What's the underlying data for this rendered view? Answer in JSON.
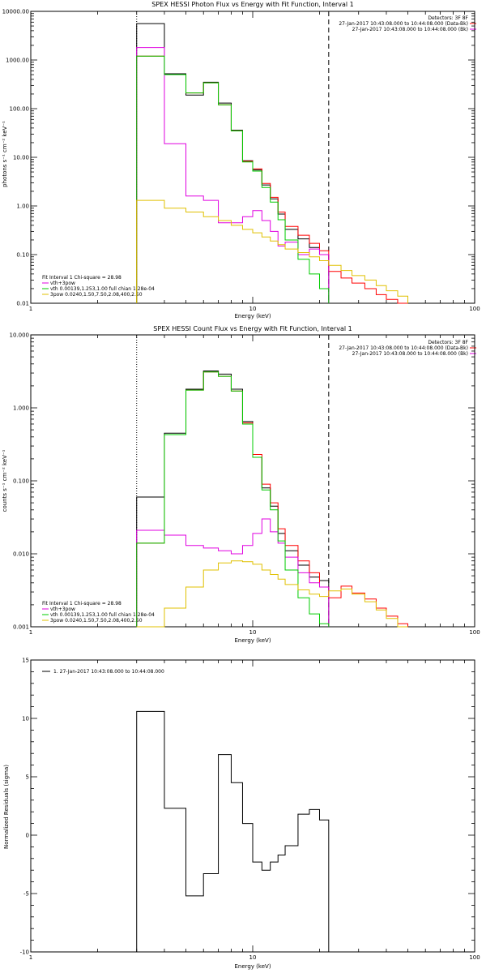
{
  "chart_data": [
    {
      "type": "line",
      "title": "SPEX HESSI Photon Flux vs Energy with Fit Function, Interval 1",
      "xlabel": "Energy (keV)",
      "ylabel": "photons s⁻¹ cm⁻² keV⁻¹",
      "xscale": "log",
      "yscale": "log",
      "xlim": [
        1,
        100
      ],
      "ylim": [
        0.01,
        10000
      ],
      "x_ticks": [
        "1",
        "10",
        "100"
      ],
      "y_ticks": [
        "0.01",
        "0.10",
        "1.00",
        "10.00",
        "100.00",
        "1000.00",
        "10000.00"
      ],
      "vlines": [
        {
          "x": 3,
          "style": "dotted"
        },
        {
          "x": 22,
          "style": "dashed"
        }
      ],
      "legend_top": [
        "Detectors: 3F 8F",
        "27-Jan-2017 10:43:08.000 to 10:44:08.000 (Data-Bk)",
        "27-Jan-2017 10:43:08.000 to 10:44:08.000 (Bk)"
      ],
      "legend_bottom": [
        "Fit Interval  1    Chi-square = 28.98",
        "vth+3pow",
        "vth 0.00139,1.253,1.00  full chian 1.28e-04",
        "3pow 0.0240,1.50,7.50,2.08,400,2.50"
      ],
      "bin_edges": [
        3,
        4,
        5,
        6,
        7,
        8,
        9,
        10,
        11,
        12,
        13,
        14,
        16,
        18,
        20,
        22,
        25,
        28,
        32,
        36,
        40,
        45,
        50
      ],
      "series": [
        {
          "color": "#000000",
          "values": [
            5600,
            520,
            190,
            350,
            130,
            36,
            8.5,
            5.5,
            2.7,
            1.4,
            0.68,
            0.33,
            0.21,
            0.14,
            0.1
          ]
        },
        {
          "color": "#ff0000",
          "values": [
            1200,
            500,
            210,
            340,
            120,
            35,
            8.3,
            5.8,
            2.9,
            1.5,
            0.75,
            0.38,
            0.25,
            0.17,
            0.12,
            0.045,
            0.033,
            0.026,
            0.02,
            0.015,
            0.012,
            0.0095
          ]
        },
        {
          "color": "#e000e0",
          "values": [
            1800,
            19,
            1.6,
            1.3,
            0.45,
            0.45,
            0.6,
            0.8,
            0.5,
            0.3,
            0.15,
            0.18,
            0.1,
            0.13,
            0.1
          ]
        },
        {
          "color": "#00cc00",
          "values": [
            1200,
            500,
            210,
            340,
            120,
            35,
            8.0,
            5.2,
            2.4,
            1.2,
            0.52,
            0.2,
            0.08,
            0.04,
            0.02
          ]
        },
        {
          "color": "#e0c000",
          "values": [
            1.3,
            0.9,
            0.75,
            0.6,
            0.5,
            0.4,
            0.33,
            0.28,
            0.23,
            0.19,
            0.16,
            0.13,
            0.11,
            0.09,
            0.075,
            0.06,
            0.047,
            0.037,
            0.03,
            0.023,
            0.018,
            0.014
          ]
        }
      ]
    },
    {
      "type": "line",
      "title": "SPEX HESSI Count Flux vs Energy with Fit Function, Interval 1",
      "xlabel": "Energy (keV)",
      "ylabel": "counts s⁻¹ cm⁻² keV⁻¹",
      "xscale": "log",
      "yscale": "log",
      "xlim": [
        1,
        100
      ],
      "ylim": [
        0.001,
        10
      ],
      "x_ticks": [
        "1",
        "10",
        "100"
      ],
      "y_ticks": [
        "0.001",
        "0.010",
        "0.100",
        "1.000",
        "10.000"
      ],
      "vlines": [
        {
          "x": 3,
          "style": "dotted"
        },
        {
          "x": 22,
          "style": "dashed"
        }
      ],
      "legend_top": [
        "Detectors: 3F 8F",
        "27-Jan-2017 10:43:08.000 to 10:44:08.000 (Data-Bk)",
        "27-Jan-2017 10:43:08.000 to 10:44:08.000 (Bk)"
      ],
      "legend_bottom": [
        "Fit Interval  1    Chi-square = 28.98",
        "vth+3pow",
        "vth 0.00139,1.253,1.00  full chian 1.28e-04",
        "3pow 0.0240,1.50,7.50,2.08,400,2.50"
      ],
      "bin_edges": [
        3,
        4,
        5,
        6,
        7,
        8,
        9,
        10,
        11,
        12,
        13,
        14,
        16,
        18,
        20,
        22,
        25,
        28,
        32,
        36,
        40,
        45,
        50
      ],
      "series": [
        {
          "color": "#000000",
          "values": [
            0.06,
            0.45,
            1.8,
            3.2,
            2.9,
            1.8,
            0.65,
            0.21,
            0.08,
            0.045,
            0.019,
            0.011,
            0.007,
            0.0048,
            0.0043
          ]
        },
        {
          "color": "#ff0000",
          "values": [
            0.014,
            0.43,
            1.75,
            3.1,
            2.7,
            1.7,
            0.62,
            0.23,
            0.09,
            0.05,
            0.022,
            0.013,
            0.008,
            0.0055,
            0.0035,
            0.0025,
            0.0036,
            0.0029,
            0.0024,
            0.0018,
            0.0014,
            0.0011
          ]
        },
        {
          "color": "#e000e0",
          "values": [
            0.021,
            0.018,
            0.013,
            0.012,
            0.011,
            0.01,
            0.013,
            0.019,
            0.03,
            0.02,
            0.014,
            0.009,
            0.0055,
            0.004,
            0.0035
          ]
        },
        {
          "color": "#00cc00",
          "values": [
            0.014,
            0.43,
            1.75,
            3.1,
            2.7,
            1.7,
            0.6,
            0.21,
            0.075,
            0.04,
            0.015,
            0.006,
            0.0025,
            0.0015,
            0.0011
          ]
        },
        {
          "color": "#e0c000",
          "values": [
            0.001,
            0.0018,
            0.0035,
            0.006,
            0.0075,
            0.008,
            0.0078,
            0.0072,
            0.006,
            0.0052,
            0.0045,
            0.0038,
            0.0032,
            0.0028,
            0.0026,
            0.0031,
            0.0033,
            0.0028,
            0.0022,
            0.0017,
            0.0013,
            0.001
          ]
        }
      ]
    },
    {
      "type": "line",
      "title": "",
      "xlabel": "Energy (keV)",
      "ylabel": "Normalized Residuals (sigma)",
      "xscale": "log",
      "yscale": "linear",
      "xlim": [
        1,
        100
      ],
      "ylim": [
        -10,
        15
      ],
      "x_ticks": [
        "1",
        "10",
        "100"
      ],
      "y_ticks": [
        "-10",
        "-5",
        "0",
        "5",
        "10",
        "15"
      ],
      "legend": "1. 27-Jan-2017 10:43:08.000 to 10:44:08.000",
      "bin_edges": [
        3,
        4,
        5,
        6,
        7,
        8,
        9,
        10,
        11,
        12,
        13,
        14,
        16,
        18,
        20,
        22
      ],
      "series": [
        {
          "color": "#000000",
          "values": [
            10.6,
            2.3,
            -5.2,
            -3.3,
            6.9,
            4.5,
            1.0,
            -2.3,
            -3.0,
            -2.3,
            -1.7,
            -0.9,
            1.8,
            2.2,
            1.3
          ]
        }
      ]
    }
  ]
}
